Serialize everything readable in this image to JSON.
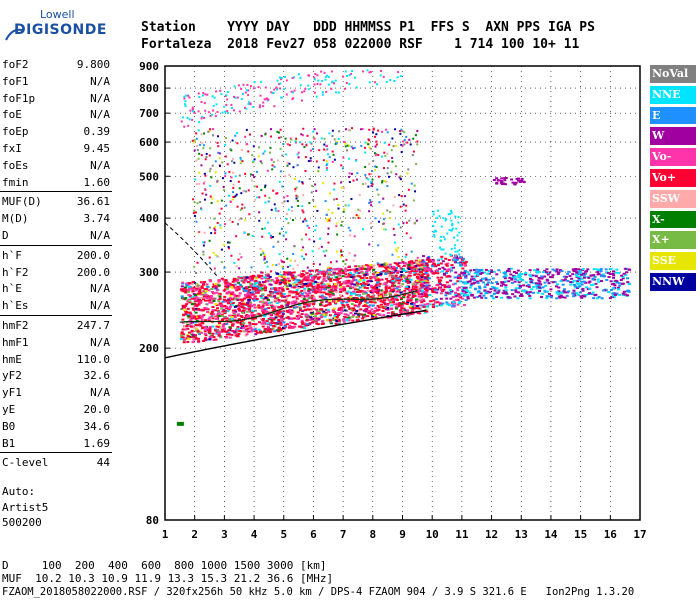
{
  "logo": {
    "top": "Lowell",
    "main": "DIGISONDE"
  },
  "header": {
    "line1": "Station    YYYY DAY   DDD HHMMSS P1  FFS S  AXN PPS IGA PS",
    "line2": "Fortaleza  2018 Fev27 058 022000 RSF    1 714 100 10+ 11"
  },
  "params": {
    "group1": [
      {
        "k": "foF2",
        "v": "9.800"
      },
      {
        "k": "foF1",
        "v": "N/A"
      },
      {
        "k": "foF1p",
        "v": "N/A"
      },
      {
        "k": "foE",
        "v": "N/A"
      },
      {
        "k": "foEp",
        "v": "0.39"
      },
      {
        "k": "fxI",
        "v": "9.45"
      },
      {
        "k": "foEs",
        "v": "N/A"
      },
      {
        "k": "fmin",
        "v": "1.60"
      }
    ],
    "group2": [
      {
        "k": "MUF(D)",
        "v": "36.61"
      },
      {
        "k": "M(D)",
        "v": "3.74"
      },
      {
        "k": "D",
        "v": "N/A"
      }
    ],
    "group3": [
      {
        "k": "h`F",
        "v": "200.0"
      },
      {
        "k": "h`F2",
        "v": "200.0"
      },
      {
        "k": "h`E",
        "v": "N/A"
      },
      {
        "k": "h`Es",
        "v": "N/A"
      }
    ],
    "group4": [
      {
        "k": "hmF2",
        "v": "247.7"
      },
      {
        "k": "hmF1",
        "v": "N/A"
      },
      {
        "k": "hmE",
        "v": "110.0"
      },
      {
        "k": "yF2",
        "v": "32.6"
      },
      {
        "k": "yF1",
        "v": "N/A"
      },
      {
        "k": "yE",
        "v": "20.0"
      },
      {
        "k": "B0",
        "v": "34.6"
      },
      {
        "k": "B1",
        "v": "1.69"
      }
    ],
    "group5": [
      {
        "k": "C-level",
        "v": "44"
      }
    ]
  },
  "auto": {
    "l1": "Auto:",
    "l2": "Artist5",
    "l3": "500200"
  },
  "legend": [
    {
      "label": "NoVal",
      "color": "#808080"
    },
    {
      "label": "NNE",
      "color": "#00e5ff"
    },
    {
      "label": "E",
      "color": "#1e90ff"
    },
    {
      "label": "W",
      "color": "#a000a0"
    },
    {
      "label": "Vo-",
      "color": "#ff33aa"
    },
    {
      "label": "Vo+",
      "color": "#ff0033"
    },
    {
      "label": "SSW",
      "color": "#ffaaaa"
    },
    {
      "label": "X-",
      "color": "#008000"
    },
    {
      "label": "X+",
      "color": "#77bb44"
    },
    {
      "label": "SSE",
      "color": "#e6e600"
    },
    {
      "label": "NNW",
      "color": "#0000a0"
    }
  ],
  "chart_data": {
    "type": "scatter",
    "title": "",
    "xlabel": "",
    "ylabel": "",
    "xlim": [
      1,
      17
    ],
    "ylim_log": [
      80,
      900
    ],
    "x_ticks": [
      1,
      2,
      3,
      4,
      5,
      6,
      7,
      8,
      9,
      10,
      11,
      12,
      13,
      14,
      15,
      16,
      17
    ],
    "y_ticks": [
      80,
      200,
      300,
      400,
      500,
      600,
      700,
      800,
      900
    ],
    "note_curves": [
      "lower solid trace",
      "dashed trace",
      "MUF curve"
    ]
  },
  "footer": {
    "d_row": "D     100  200  400  600  800 1000 1500 3000 [km]",
    "muf_row": "MUF  10.2 10.3 10.9 11.9 13.3 15.3 21.2 36.6 [MHz]",
    "file_row": "FZAOM_2018058022000.RSF / 320fx256h 50 kHz 5.0 km / DPS-4 FZAOM 904 / 3.9 S 321.6 E   Ion2Png 1.3.20"
  }
}
